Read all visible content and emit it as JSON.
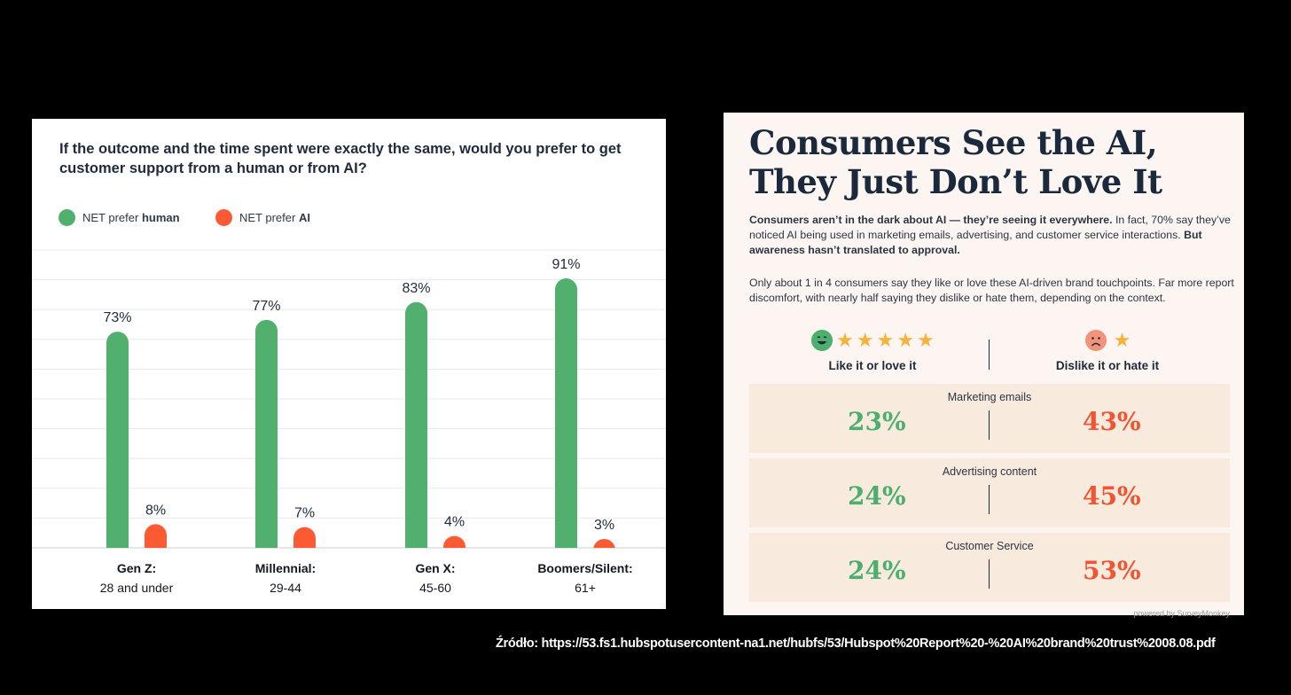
{
  "left_chart": {
    "question": "If the outcome and the time spent were exactly the same, would you prefer to get customer support from a human or from AI?",
    "legend": [
      {
        "prefix": "NET prefer ",
        "bold": "human",
        "color": "#52b06f"
      },
      {
        "prefix": "NET prefer ",
        "bold": "AI",
        "color": "#fb5a33"
      }
    ]
  },
  "chart_data": {
    "type": "bar",
    "title": "If the outcome and the time spent were exactly the same, would you prefer to get customer support from a human or from AI?",
    "categories": [
      {
        "line1": "Gen Z:",
        "line2": "28 and under"
      },
      {
        "line1": "Millennial:",
        "line2": "29-44"
      },
      {
        "line1": "Gen X:",
        "line2": "45-60"
      },
      {
        "line1": "Boomers/Silent:",
        "line2": "61+"
      }
    ],
    "series": [
      {
        "name": "NET prefer human",
        "color": "#52b06f",
        "values": [
          73,
          77,
          83,
          91
        ]
      },
      {
        "name": "NET prefer AI",
        "color": "#fb5a33",
        "values": [
          8,
          7,
          4,
          3
        ]
      }
    ],
    "ylim": [
      0,
      100
    ],
    "grid": true,
    "value_suffix": "%"
  },
  "right_panel": {
    "headline_line1": "Consumers See the AI,",
    "headline_line2": "They Just Don’t Love It",
    "para1_bold": "Consumers aren’t in the dark about AI — they’re seeing it everywhere.",
    "para1_text": " In fact, 70% say they’ve noticed AI being used in marketing emails, advertising, and customer service interactions.",
    "para1_bold2": " But awareness hasn’t translated to approval.",
    "para2": "Only about 1 in 4 consumers say they like or love these AI-driven brand touchpoints. Far more report discomfort, with nearly half saying they dislike or hate them, depending on the context.",
    "like_label": "Like it or love it",
    "dislike_label": "Dislike it or hate it",
    "rows": [
      {
        "label": "Marketing emails",
        "like": "23%",
        "dislike": "43%"
      },
      {
        "label": "Advertising content",
        "like": "24%",
        "dislike": "45%"
      },
      {
        "label": "Customer Service",
        "like": "24%",
        "dislike": "53%"
      }
    ],
    "powered_by": "powered by SurveyMonkey",
    "colors": {
      "like": "#4caf6e",
      "dislike": "#ef5533",
      "star": "#f6b33b"
    }
  },
  "source": "Źródło: https://53.fs1.hubspotusercontent-na1.net/hubfs/53/Hubspot%20Report%20-%20AI%20brand%20trust%2008.08.pdf"
}
